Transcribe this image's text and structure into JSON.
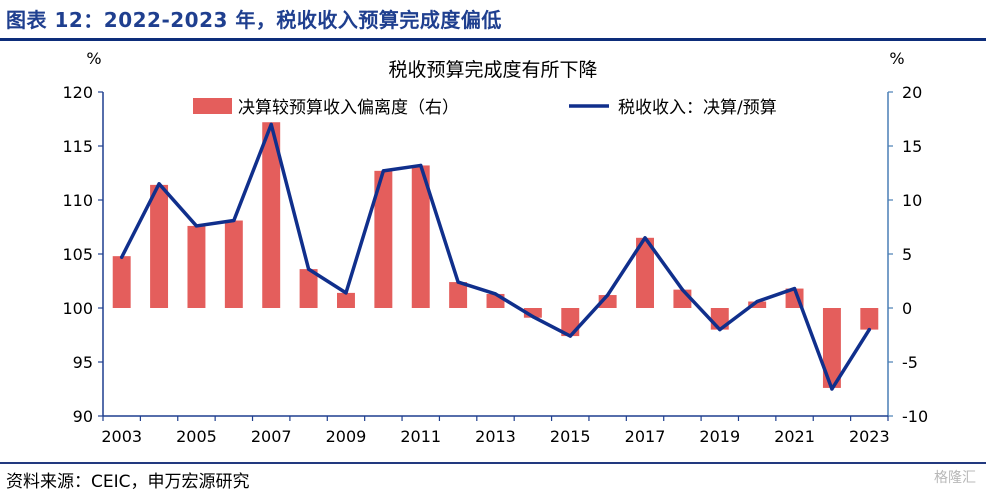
{
  "figure_title": "图表 12：2022-2023 年，税收收入预算完成度偏低",
  "source": "资料来源：CEIC，申万宏源研究",
  "watermark": "格隆汇",
  "chart_data": {
    "type": "bar+line",
    "title": "税收预算完成度有所下降",
    "left_axis": {
      "unit": "%",
      "ylim": [
        90,
        120
      ],
      "ticks": [
        "90",
        "95",
        "100",
        "105",
        "110",
        "115",
        "120"
      ]
    },
    "right_axis": {
      "unit": "%",
      "ylim": [
        -10,
        20
      ],
      "ticks": [
        "-10",
        "-5",
        "0",
        "5",
        "10",
        "15",
        "20"
      ]
    },
    "x_ticks": [
      "2003",
      "2005",
      "2007",
      "2009",
      "2011",
      "2013",
      "2015",
      "2017",
      "2019",
      "2021",
      "2023"
    ],
    "x": [
      2003,
      2004,
      2005,
      2006,
      2007,
      2008,
      2009,
      2010,
      2011,
      2012,
      2013,
      2014,
      2015,
      2016,
      2017,
      2018,
      2019,
      2020,
      2021,
      2022,
      2023
    ],
    "legend_position": "top",
    "colors": {
      "bar": "#e45e5c",
      "line": "#102f8c",
      "axis_left": "#1f3f8f",
      "axis_right": "#4a7fb5"
    },
    "series": [
      {
        "name": "决算较预算收入偏离度（右）",
        "kind": "bar",
        "axis": "right",
        "values": [
          4.8,
          11.4,
          7.6,
          8.1,
          17.2,
          3.6,
          1.4,
          12.7,
          13.2,
          2.4,
          1.3,
          -0.9,
          -2.6,
          1.2,
          6.5,
          1.7,
          -2.0,
          0.6,
          1.8,
          -7.4,
          -2.0
        ]
      },
      {
        "name": "税收收入：决算/预算",
        "kind": "line",
        "axis": "left",
        "values": [
          104.7,
          111.5,
          107.6,
          108.1,
          117.0,
          103.6,
          101.4,
          112.7,
          113.2,
          102.4,
          101.3,
          99.2,
          97.4,
          101.2,
          106.5,
          101.7,
          98.0,
          100.6,
          101.8,
          92.5,
          98.0
        ]
      }
    ]
  }
}
